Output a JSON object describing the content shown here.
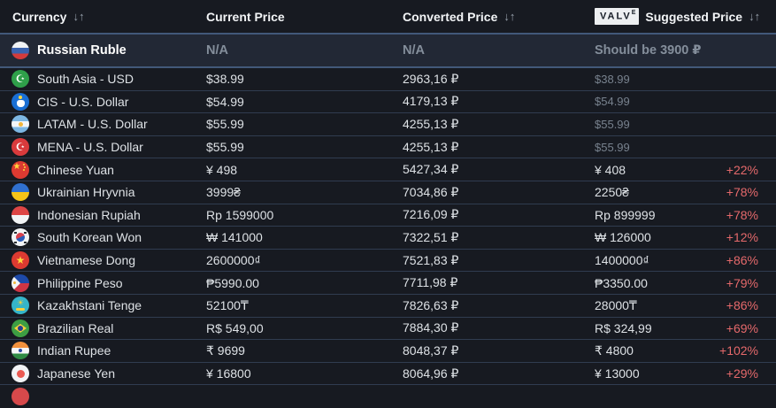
{
  "theme": {
    "background": "#171a21",
    "row_divider": "#303c50",
    "highlight_row_bg": "#222835",
    "highlight_row_border": "#42597a",
    "text": "#dde1e5",
    "muted_text": "#78828e",
    "percent_increase_color": "#e5696b",
    "valve_badge_bg": "#edeff1",
    "valve_badge_text": "#161c26"
  },
  "table": {
    "header": {
      "currency": {
        "label": "Currency",
        "sort": "↓↑"
      },
      "current": {
        "label": "Current Price"
      },
      "converted": {
        "label": "Converted Price",
        "sort": "↓↑"
      },
      "suggested": {
        "label": "Suggested Price",
        "sort": "↓↑",
        "badge_main": "VALV",
        "badge_sup": "E"
      }
    },
    "rows": [
      {
        "flag": "ru",
        "label": "Russian Ruble",
        "current": "N/A",
        "converted": "N/A",
        "suggested": "Should be 3900 ₽",
        "percent": "",
        "highlight": true
      },
      {
        "flag": "pk",
        "label": "South Asia - USD",
        "current": "$38.99",
        "converted": "2963,16 ₽",
        "suggested": "$38.99",
        "percent": "",
        "muted": true
      },
      {
        "flag": "cis",
        "label": "CIS - U.S. Dollar",
        "current": "$54.99",
        "converted": "4179,13 ₽",
        "suggested": "$54.99",
        "percent": "",
        "muted": true
      },
      {
        "flag": "ar",
        "label": "LATAM - U.S. Dollar",
        "current": "$55.99",
        "converted": "4255,13 ₽",
        "suggested": "$55.99",
        "percent": "",
        "muted": true
      },
      {
        "flag": "tr",
        "label": "MENA - U.S. Dollar",
        "current": "$55.99",
        "converted": "4255,13 ₽",
        "suggested": "$55.99",
        "percent": "",
        "muted": true
      },
      {
        "flag": "cn",
        "label": "Chinese Yuan",
        "current": "¥ 498",
        "converted": "5427,34 ₽",
        "suggested": "¥ 408",
        "percent": "+22%"
      },
      {
        "flag": "ua",
        "label": "Ukrainian Hryvnia",
        "current": "3999₴",
        "converted": "7034,86 ₽",
        "suggested": "2250₴",
        "percent": "+78%"
      },
      {
        "flag": "id",
        "label": "Indonesian Rupiah",
        "current": "Rp 1599000",
        "converted": "7216,09 ₽",
        "suggested": "Rp 899999",
        "percent": "+78%"
      },
      {
        "flag": "kr",
        "label": "South Korean Won",
        "current": "₩ 141000",
        "converted": "7322,51 ₽",
        "suggested": "₩ 126000",
        "percent": "+12%"
      },
      {
        "flag": "vn",
        "label": "Vietnamese Dong",
        "current": "2600000₫",
        "converted": "7521,83 ₽",
        "suggested": "1400000₫",
        "percent": "+86%"
      },
      {
        "flag": "ph",
        "label": "Philippine Peso",
        "current": "₱5990.00",
        "converted": "7711,98 ₽",
        "suggested": "₱3350.00",
        "percent": "+79%"
      },
      {
        "flag": "kz",
        "label": "Kazakhstani Tenge",
        "current": "52100₸",
        "converted": "7826,63 ₽",
        "suggested": "28000₸",
        "percent": "+86%"
      },
      {
        "flag": "br",
        "label": "Brazilian Real",
        "current": "R$ 549,00",
        "converted": "7884,30 ₽",
        "suggested": "R$ 324,99",
        "percent": "+69%"
      },
      {
        "flag": "in",
        "label": "Indian Rupee",
        "current": "₹ 9699",
        "converted": "8048,37 ₽",
        "suggested": "₹ 4800",
        "percent": "+102%"
      },
      {
        "flag": "jp",
        "label": "Japanese Yen",
        "current": "¥ 16800",
        "converted": "8064,96 ₽",
        "suggested": "¥ 13000",
        "percent": "+29%"
      },
      {
        "flag": "next",
        "label": "",
        "current": "",
        "converted": "",
        "suggested": "",
        "percent": "",
        "partial": true
      }
    ]
  }
}
